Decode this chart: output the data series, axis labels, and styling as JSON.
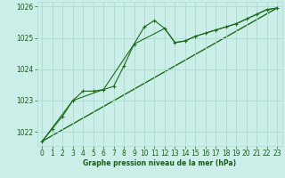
{
  "background_color": "#cceee8",
  "grid_color": "#aaddcc",
  "line_color": "#1a6b1a",
  "marker_color": "#1a6b1a",
  "xlabel": "Graphe pression niveau de la mer (hPa)",
  "xlabel_color": "#1a5c1a",
  "xlim": [
    -0.5,
    23.5
  ],
  "ylim": [
    1021.55,
    1026.15
  ],
  "yticks": [
    1022,
    1023,
    1024,
    1025,
    1026
  ],
  "xticks": [
    0,
    1,
    2,
    3,
    4,
    5,
    6,
    7,
    8,
    9,
    10,
    11,
    12,
    13,
    14,
    15,
    16,
    17,
    18,
    19,
    20,
    21,
    22,
    23
  ],
  "series1_x": [
    0,
    1,
    2,
    3,
    4,
    5,
    6,
    7,
    8,
    9,
    10,
    11,
    12,
    13,
    14,
    15,
    16,
    17,
    18,
    19,
    20,
    21,
    22,
    23
  ],
  "series1_y": [
    1021.7,
    1022.1,
    1022.5,
    1023.0,
    1023.3,
    1023.3,
    1023.35,
    1023.45,
    1024.1,
    1024.8,
    1025.35,
    1025.55,
    1025.3,
    1024.85,
    1024.9,
    1025.05,
    1025.15,
    1025.25,
    1025.35,
    1025.45,
    1025.6,
    1025.75,
    1025.9,
    1025.95
  ],
  "series2_x": [
    0,
    3,
    6,
    9,
    12,
    13,
    14,
    15,
    16,
    17,
    18,
    19,
    20,
    21,
    22,
    23
  ],
  "series2_y": [
    1021.7,
    1023.0,
    1023.35,
    1024.8,
    1025.3,
    1024.85,
    1024.9,
    1025.05,
    1025.15,
    1025.25,
    1025.35,
    1025.45,
    1025.6,
    1025.75,
    1025.9,
    1025.95
  ],
  "series3_x": [
    0,
    23
  ],
  "series3_y": [
    1021.7,
    1025.95
  ]
}
